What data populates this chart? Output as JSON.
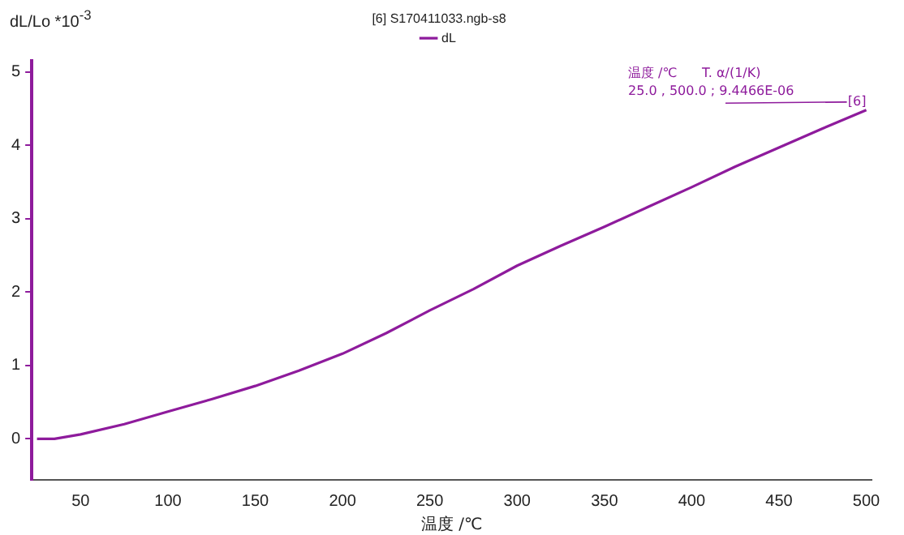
{
  "chart_data": {
    "type": "line",
    "xlabel": "温度 /℃",
    "ylabel": "dL/Lo *10$^{-3}$",
    "legend_title": "[6] S170411033.ngb-s8",
    "legend": "top",
    "x": [
      25,
      35,
      50,
      75,
      100,
      125,
      150,
      175,
      200,
      225,
      250,
      275,
      300,
      325,
      350,
      375,
      400,
      425,
      450,
      475,
      500
    ],
    "series": [
      {
        "name": "dL",
        "color": "#8e1b9c",
        "values": [
          0,
          0,
          0.06,
          0.2,
          0.37,
          0.54,
          0.72,
          0.93,
          1.16,
          1.44,
          1.75,
          2.04,
          2.36,
          2.63,
          2.89,
          3.16,
          3.43,
          3.71,
          3.97,
          4.23,
          4.48
        ]
      }
    ],
    "xlim": [
      22,
      503
    ],
    "xticks": [
      50,
      100,
      150,
      200,
      250,
      300,
      350,
      400,
      450,
      500
    ],
    "ylim": [
      -0.56,
      5.15
    ],
    "yticks": [
      0,
      1,
      2,
      3,
      4,
      5
    ],
    "grid": false,
    "marker": "none",
    "line_style": "solid",
    "annotations": [
      "温度 /℃      T. α/(1/K)",
      "25.0 , 500.0 ; 9.4466E-06",
      {
        "text": "[6]",
        "x": 500,
        "y": 4.48
      }
    ]
  }
}
